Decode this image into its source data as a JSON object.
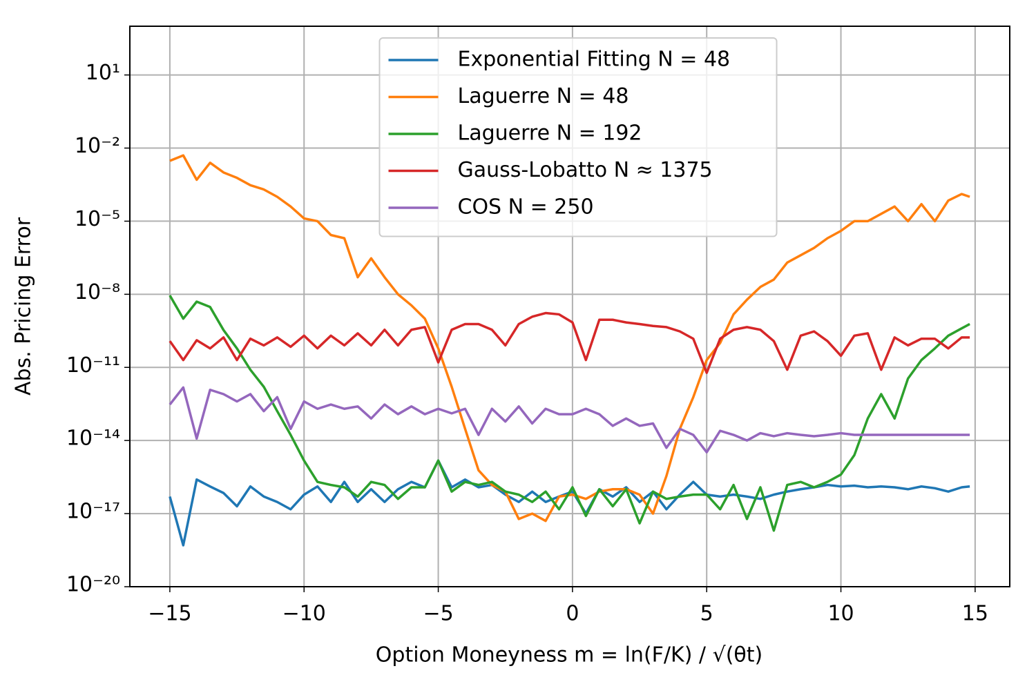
{
  "chart_data": {
    "type": "line",
    "xlabel": "Option Moneyness m = ln(F/K) / √(θt)",
    "ylabel": "Abs. Pricing Error",
    "yscale": "log",
    "grid": true,
    "legend": "upper center",
    "xlim": [
      -16.49,
      16.29
    ],
    "ylim": [
      1e-20,
      1000.0
    ],
    "xticks": [
      {
        "value": -15,
        "label": "−15"
      },
      {
        "value": -10,
        "label": "−10"
      },
      {
        "value": -5,
        "label": "−5"
      },
      0,
      5,
      10,
      15
    ],
    "yticks": [
      {
        "value": 1e-20,
        "label": "10⁻²⁰"
      },
      {
        "value": 1e-17,
        "label": "10⁻¹⁷"
      },
      {
        "value": 1e-14,
        "label": "10⁻¹⁴"
      },
      {
        "value": 1e-11,
        "label": "10⁻¹¹"
      },
      {
        "value": 1e-08,
        "label": "10⁻⁸"
      },
      {
        "value": 1e-05,
        "label": "10⁻⁵"
      },
      {
        "value": 0.01,
        "label": "10⁻²"
      },
      {
        "value": 10,
        "label": "10¹"
      }
    ],
    "x": [
      -15,
      -14.5,
      -14,
      -13.5,
      -13,
      -12.5,
      -12,
      -11.5,
      -11,
      -10.5,
      -10,
      -9.5,
      -9,
      -8.5,
      -8,
      -7.5,
      -7,
      -6.5,
      -6,
      -5.5,
      -5,
      -4.5,
      -4,
      -3.5,
      -3,
      -2.5,
      -2,
      -1.5,
      -1,
      -0.5,
      0,
      0.5,
      1,
      1.5,
      2,
      2.5,
      3,
      3.5,
      4,
      4.5,
      5,
      5.5,
      6,
      6.5,
      7,
      7.5,
      8,
      8.5,
      9,
      9.5,
      10,
      10.5,
      11,
      11.5,
      12,
      12.5,
      13,
      13.5,
      14,
      14.5,
      14.8
    ],
    "series": [
      {
        "name": "Exponential Fitting N = 48",
        "color": "#1f77b4",
        "values": [
          5e-17,
          5e-19,
          2.5e-16,
          1.3e-16,
          7e-17,
          2e-17,
          1.3e-16,
          5e-17,
          3e-17,
          1.5e-17,
          6e-17,
          1.3e-16,
          3e-17,
          2e-16,
          3e-17,
          1e-16,
          3e-17,
          1e-16,
          2e-16,
          1.2e-16,
          1.5e-15,
          1.2e-16,
          2.5e-16,
          1.2e-16,
          1.5e-16,
          6e-17,
          3e-17,
          8e-17,
          3e-17,
          5e-17,
          8e-17,
          1e-17,
          1e-16,
          5e-17,
          1.2e-16,
          3e-17,
          8e-17,
          1.5e-17,
          6e-17,
          2e-16,
          6e-17,
          5e-17,
          6e-17,
          5e-17,
          4e-17,
          6e-17,
          8e-17,
          1e-16,
          1.2e-16,
          1.5e-16,
          1.3e-16,
          1.4e-16,
          1.2e-16,
          1.3e-16,
          1.2e-16,
          1e-16,
          1.3e-16,
          1.1e-16,
          8e-17,
          1.2e-16,
          1.3e-16
        ]
      },
      {
        "name": "Laguerre N = 48",
        "color": "#ff7f0e",
        "values": [
          0.003,
          0.005,
          0.0005,
          0.0025,
          0.001,
          0.0006,
          0.0003,
          0.0002,
          0.0001,
          4e-05,
          1.3e-05,
          1e-05,
          2.7e-06,
          2e-06,
          5e-08,
          3e-07,
          5e-08,
          1e-08,
          3.5e-09,
          1e-09,
          6e-11,
          1.6e-12,
          3e-14,
          6e-16,
          1.5e-16,
          8e-17,
          6e-18,
          1e-17,
          5e-18,
          5e-17,
          6e-17,
          4e-17,
          8e-17,
          1e-16,
          1e-16,
          6e-17,
          1e-17,
          3.5e-16,
          3e-14,
          6e-13,
          2e-11,
          1e-10,
          1.5e-09,
          6e-09,
          2e-08,
          4e-08,
          2e-07,
          4e-07,
          8e-07,
          2e-06,
          4e-06,
          1e-05,
          1e-05,
          2e-05,
          4e-05,
          1e-05,
          5e-05,
          1e-05,
          7e-05,
          0.00013,
          0.0001
        ]
      },
      {
        "name": "Laguerre N = 192",
        "color": "#2ca02c",
        "values": [
          9e-09,
          1e-09,
          5e-09,
          3e-09,
          3.4e-10,
          6e-11,
          8e-12,
          1.6e-12,
          1.6e-13,
          1.7e-14,
          1.5e-15,
          2e-16,
          1.5e-16,
          1.2e-16,
          5e-17,
          2e-16,
          1.5e-16,
          4e-17,
          1.2e-16,
          1.2e-16,
          1.5e-15,
          8e-17,
          2e-16,
          1.5e-16,
          2e-16,
          8e-17,
          6e-17,
          3e-17,
          8e-17,
          1.5e-17,
          1.2e-16,
          8e-18,
          1e-16,
          2e-17,
          1e-16,
          4e-18,
          8e-17,
          4e-17,
          5e-17,
          6e-17,
          6e-17,
          1.5e-17,
          1.5e-16,
          6e-18,
          1.2e-16,
          2e-18,
          1.5e-16,
          2e-16,
          1.2e-16,
          2e-16,
          4e-16,
          2.5e-15,
          8e-14,
          8e-13,
          8e-14,
          3.5e-12,
          2e-11,
          6e-11,
          2e-10,
          4e-10,
          6e-10
        ]
      },
      {
        "name": "Gauss-Lobatto N ≈ 1375",
        "color": "#d62728",
        "values": [
          1.2e-10,
          2e-11,
          1.3e-10,
          6e-11,
          1.7e-10,
          2e-11,
          1.5e-10,
          8e-11,
          1.7e-10,
          7e-11,
          2e-10,
          6e-11,
          2e-10,
          8e-11,
          2.5e-10,
          8e-11,
          3.5e-10,
          8e-11,
          3.5e-10,
          4.5e-10,
          1.6e-11,
          3.5e-10,
          6e-10,
          6e-10,
          3.5e-10,
          8e-11,
          6e-10,
          1.2e-09,
          1.7e-09,
          1.5e-09,
          7e-10,
          2e-11,
          9e-10,
          9e-10,
          7e-10,
          6e-10,
          5e-10,
          4.5e-10,
          3e-10,
          1.5e-10,
          6e-12,
          1.5e-10,
          3.5e-10,
          4.5e-10,
          3.5e-10,
          1.2e-10,
          8e-12,
          2e-10,
          3e-10,
          1.2e-10,
          3e-11,
          2e-10,
          2.5e-10,
          8e-12,
          1.7e-10,
          8e-11,
          1.5e-10,
          1.5e-10,
          6e-11,
          1.7e-10,
          1.7e-10
        ]
      },
      {
        "name": "COS N = 250",
        "color": "#9467bd",
        "values": [
          3e-13,
          1.5e-12,
          1.2e-14,
          1.2e-12,
          8e-13,
          4e-13,
          8e-13,
          1.6e-13,
          6e-13,
          3e-14,
          4e-13,
          2e-13,
          3e-13,
          2e-13,
          2.5e-13,
          8e-14,
          3e-13,
          1.2e-13,
          2.5e-13,
          1.2e-13,
          2e-13,
          1.3e-13,
          2e-13,
          1.7e-14,
          2e-13,
          6e-14,
          2.5e-13,
          5e-14,
          2e-13,
          1.2e-13,
          1.2e-13,
          2e-13,
          1.2e-13,
          4e-14,
          8e-14,
          4e-14,
          5e-14,
          5e-15,
          3e-14,
          1.7e-14,
          3.3e-15,
          2.5e-14,
          1.7e-14,
          1e-14,
          2e-14,
          1.5e-14,
          2e-14,
          1.7e-14,
          1.5e-14,
          1.7e-14,
          2e-14,
          1.7e-14,
          1.7e-14,
          1.7e-14,
          1.7e-14,
          1.7e-14,
          1.7e-14,
          1.7e-14,
          1.7e-14,
          1.7e-14,
          1.7e-14
        ]
      }
    ]
  }
}
